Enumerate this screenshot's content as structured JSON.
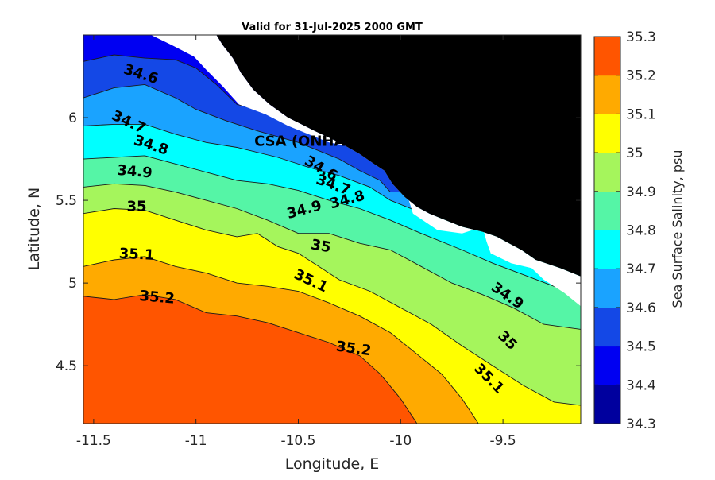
{
  "title": "Valid for 31-Jul-2025 2000 GMT",
  "xlabel": "Longitude, E",
  "ylabel": "Latitude, N",
  "xlim": [
    -11.55,
    -9.12
  ],
  "ylim": [
    4.15,
    6.5
  ],
  "xticks": [
    {
      "value": -11.5,
      "label": "-11.5"
    },
    {
      "value": -11,
      "label": "-11"
    },
    {
      "value": -10.5,
      "label": "-10.5"
    },
    {
      "value": -10,
      "label": "-10"
    },
    {
      "value": -9.5,
      "label": "-9.5"
    }
  ],
  "yticks": [
    {
      "value": 4.5,
      "label": "4.5"
    },
    {
      "value": 5,
      "label": "5"
    },
    {
      "value": 5.5,
      "label": "5.5"
    },
    {
      "value": 6,
      "label": "6"
    }
  ],
  "colorbar": {
    "label": "Sea Surface Salinity, psu",
    "levels": [
      {
        "from": 34.3,
        "to": 34.4,
        "color": "#00009e"
      },
      {
        "from": 34.4,
        "to": 34.5,
        "color": "#0000f2"
      },
      {
        "from": 34.5,
        "to": 34.6,
        "color": "#1448e6"
      },
      {
        "from": 34.6,
        "to": 34.7,
        "color": "#1aa3ff"
      },
      {
        "from": 34.7,
        "to": 34.8,
        "color": "#00ffff"
      },
      {
        "from": 34.8,
        "to": 34.9,
        "color": "#55f5a6"
      },
      {
        "from": 34.9,
        "to": 35.0,
        "color": "#a5f55c"
      },
      {
        "from": 35.0,
        "to": 35.1,
        "color": "#ffff00"
      },
      {
        "from": 35.1,
        "to": 35.2,
        "color": "#ffaa00"
      },
      {
        "from": 35.2,
        "to": 35.3,
        "color": "#ff5500"
      }
    ],
    "tick_labels": [
      "34.3",
      "34.4",
      "34.5",
      "34.6",
      "34.7",
      "34.8",
      "34.9",
      "35",
      "35.1",
      "35.2",
      "35.3"
    ]
  },
  "land_color": "#000000",
  "station": {
    "label": "CSA (ONHAM) PPL ED",
    "lon": -10.28,
    "lat": 5.92
  },
  "contour_labels": [
    {
      "text": "34.6",
      "lon": -11.27,
      "lat": 6.26,
      "rot": 18
    },
    {
      "text": "34.7",
      "lon": -11.33,
      "lat": 5.97,
      "rot": 25
    },
    {
      "text": "34.8",
      "lon": -11.22,
      "lat": 5.83,
      "rot": 18
    },
    {
      "text": "34.9",
      "lon": -11.3,
      "lat": 5.67,
      "rot": 5
    },
    {
      "text": "35",
      "lon": -11.29,
      "lat": 5.46,
      "rot": 0
    },
    {
      "text": "35.1",
      "lon": -11.29,
      "lat": 5.17,
      "rot": 3
    },
    {
      "text": "35.2",
      "lon": -11.19,
      "lat": 4.91,
      "rot": 5
    },
    {
      "text": "34.6",
      "lon": -10.39,
      "lat": 5.69,
      "rot": 30
    },
    {
      "text": "34.7",
      "lon": -10.33,
      "lat": 5.59,
      "rot": 20
    },
    {
      "text": "34.8",
      "lon": -10.26,
      "lat": 5.5,
      "rot": -15
    },
    {
      "text": "34.9",
      "lon": -10.47,
      "lat": 5.44,
      "rot": -15
    },
    {
      "text": "35",
      "lon": -10.39,
      "lat": 5.22,
      "rot": 10
    },
    {
      "text": "35.1",
      "lon": -10.44,
      "lat": 5.01,
      "rot": 25
    },
    {
      "text": "34.9",
      "lon": -9.48,
      "lat": 4.92,
      "rot": 35
    },
    {
      "text": "35",
      "lon": -9.48,
      "lat": 4.65,
      "rot": 45
    },
    {
      "text": "35.1",
      "lon": -9.57,
      "lat": 4.42,
      "rot": 45
    },
    {
      "text": "35.2",
      "lon": -10.23,
      "lat": 4.6,
      "rot": 8
    }
  ],
  "land_polygon": [
    [
      -10.9,
      6.5
    ],
    [
      -9.12,
      6.5
    ],
    [
      -9.12,
      5.04
    ],
    [
      -9.22,
      5.09
    ],
    [
      -9.34,
      5.14
    ],
    [
      -9.41,
      5.2
    ],
    [
      -9.47,
      5.24
    ],
    [
      -9.53,
      5.28
    ],
    [
      -9.6,
      5.31
    ],
    [
      -9.7,
      5.34
    ],
    [
      -9.78,
      5.38
    ],
    [
      -9.86,
      5.42
    ],
    [
      -9.92,
      5.46
    ],
    [
      -9.98,
      5.52
    ],
    [
      -10.04,
      5.6
    ],
    [
      -10.08,
      5.68
    ],
    [
      -10.13,
      5.72
    ],
    [
      -10.2,
      5.78
    ],
    [
      -10.3,
      5.85
    ],
    [
      -10.42,
      5.92
    ],
    [
      -10.55,
      6.0
    ],
    [
      -10.64,
      6.08
    ],
    [
      -10.72,
      6.17
    ],
    [
      -10.78,
      6.27
    ],
    [
      -10.82,
      6.36
    ],
    [
      -10.87,
      6.44
    ]
  ],
  "nodata_polygons": [
    [
      [
        -11.55,
        6.5
      ],
      [
        -10.9,
        6.5
      ],
      [
        -10.87,
        6.44
      ],
      [
        -10.82,
        6.36
      ],
      [
        -10.78,
        6.27
      ],
      [
        -10.72,
        6.17
      ],
      [
        -10.64,
        6.08
      ],
      [
        -10.55,
        6.0
      ],
      [
        -10.42,
        5.92
      ],
      [
        -10.3,
        5.85
      ],
      [
        -10.2,
        5.78
      ],
      [
        -10.13,
        5.72
      ],
      [
        -10.08,
        5.68
      ],
      [
        -10.04,
        5.6
      ],
      [
        -9.98,
        5.52
      ],
      [
        -9.92,
        5.46
      ],
      [
        -9.86,
        5.42
      ],
      [
        -9.78,
        5.38
      ],
      [
        -9.7,
        5.34
      ],
      [
        -9.6,
        5.31
      ],
      [
        -9.53,
        5.28
      ],
      [
        -9.47,
        5.24
      ],
      [
        -9.41,
        5.2
      ],
      [
        -9.34,
        5.14
      ],
      [
        -9.22,
        5.09
      ],
      [
        -9.12,
        5.04
      ],
      [
        -9.12,
        4.86
      ],
      [
        -9.2,
        4.94
      ],
      [
        -9.3,
        5.02
      ],
      [
        -9.36,
        5.09
      ],
      [
        -9.46,
        5.12
      ],
      [
        -9.56,
        5.18
      ],
      [
        -9.58,
        5.25
      ],
      [
        -9.6,
        5.34
      ],
      [
        -9.7,
        5.3
      ],
      [
        -9.82,
        5.32
      ],
      [
        -9.94,
        5.42
      ],
      [
        -9.96,
        5.5
      ],
      [
        -10.01,
        5.62
      ],
      [
        -10.07,
        5.7
      ],
      [
        -10.15,
        5.74
      ],
      [
        -10.22,
        5.82
      ],
      [
        -10.35,
        5.85
      ],
      [
        -10.45,
        5.9
      ],
      [
        -10.55,
        5.95
      ],
      [
        -10.66,
        6.02
      ],
      [
        -10.79,
        6.08
      ],
      [
        -10.87,
        6.19
      ],
      [
        -10.95,
        6.29
      ],
      [
        -11.01,
        6.37
      ],
      [
        -11.12,
        6.44
      ],
      [
        -11.22,
        6.5
      ]
    ]
  ],
  "contour_lines": [
    [
      [
        -11.55,
        6.34
      ],
      [
        -11.4,
        6.38
      ],
      [
        -11.25,
        6.36
      ],
      [
        -11.1,
        6.35
      ],
      [
        -11.0,
        6.3
      ],
      [
        -10.9,
        6.2
      ],
      [
        -10.8,
        6.08
      ],
      [
        -10.6,
        6.02
      ],
      [
        -10.4,
        5.95
      ],
      [
        -10.25,
        5.85
      ]
    ],
    [
      [
        -11.55,
        6.12
      ],
      [
        -11.4,
        6.18
      ],
      [
        -11.25,
        6.2
      ],
      [
        -11.1,
        6.12
      ],
      [
        -11.0,
        6.05
      ],
      [
        -10.85,
        5.98
      ],
      [
        -10.7,
        5.92
      ],
      [
        -10.5,
        5.85
      ],
      [
        -10.4,
        5.8
      ],
      [
        -10.3,
        5.75
      ],
      [
        -10.2,
        5.68
      ],
      [
        -10.1,
        5.62
      ],
      [
        -10.05,
        5.55
      ]
    ],
    [
      [
        -11.55,
        5.95
      ],
      [
        -11.4,
        5.96
      ],
      [
        -11.25,
        5.96
      ],
      [
        -11.1,
        5.9
      ],
      [
        -10.95,
        5.85
      ],
      [
        -10.8,
        5.82
      ],
      [
        -10.6,
        5.76
      ],
      [
        -10.45,
        5.7
      ],
      [
        -10.3,
        5.65
      ],
      [
        -10.15,
        5.58
      ],
      [
        -10.05,
        5.5
      ],
      [
        -9.95,
        5.45
      ],
      [
        -9.85,
        5.4
      ]
    ],
    [
      [
        -11.55,
        5.75
      ],
      [
        -11.4,
        5.76
      ],
      [
        -11.25,
        5.77
      ],
      [
        -11.1,
        5.72
      ],
      [
        -10.95,
        5.67
      ],
      [
        -10.8,
        5.62
      ],
      [
        -10.65,
        5.6
      ],
      [
        -10.5,
        5.56
      ],
      [
        -10.35,
        5.5
      ],
      [
        -10.2,
        5.45
      ],
      [
        -10.05,
        5.38
      ],
      [
        -9.9,
        5.3
      ],
      [
        -9.7,
        5.2
      ],
      [
        -9.55,
        5.12
      ],
      [
        -9.4,
        5.05
      ],
      [
        -9.25,
        4.98
      ],
      [
        -9.12,
        4.92
      ]
    ],
    [
      [
        -11.55,
        5.58
      ],
      [
        -11.4,
        5.6
      ],
      [
        -11.25,
        5.59
      ],
      [
        -11.1,
        5.55
      ],
      [
        -10.95,
        5.5
      ],
      [
        -10.8,
        5.45
      ],
      [
        -10.65,
        5.38
      ],
      [
        -10.5,
        5.3
      ],
      [
        -10.35,
        5.3
      ],
      [
        -10.2,
        5.24
      ],
      [
        -10.05,
        5.2
      ],
      [
        -9.9,
        5.1
      ],
      [
        -9.75,
        5.0
      ],
      [
        -9.6,
        4.93
      ],
      [
        -9.45,
        4.85
      ],
      [
        -9.3,
        4.75
      ],
      [
        -9.12,
        4.72
      ]
    ],
    [
      [
        -11.55,
        5.42
      ],
      [
        -11.4,
        5.45
      ],
      [
        -11.25,
        5.44
      ],
      [
        -11.1,
        5.38
      ],
      [
        -10.95,
        5.32
      ],
      [
        -10.8,
        5.28
      ],
      [
        -10.7,
        5.3
      ],
      [
        -10.6,
        5.22
      ],
      [
        -10.5,
        5.18
      ],
      [
        -10.4,
        5.1
      ],
      [
        -10.3,
        5.02
      ],
      [
        -10.15,
        4.95
      ],
      [
        -10.0,
        4.85
      ],
      [
        -9.85,
        4.75
      ],
      [
        -9.7,
        4.62
      ],
      [
        -9.55,
        4.5
      ],
      [
        -9.4,
        4.38
      ],
      [
        -9.25,
        4.28
      ],
      [
        -9.12,
        4.26
      ]
    ],
    [
      [
        -11.55,
        5.1
      ],
      [
        -11.4,
        5.14
      ],
      [
        -11.25,
        5.16
      ],
      [
        -11.1,
        5.1
      ],
      [
        -10.95,
        5.06
      ],
      [
        -10.8,
        5.0
      ],
      [
        -10.65,
        4.98
      ],
      [
        -10.5,
        4.95
      ],
      [
        -10.35,
        4.88
      ],
      [
        -10.2,
        4.8
      ],
      [
        -10.05,
        4.7
      ],
      [
        -9.9,
        4.55
      ],
      [
        -9.8,
        4.45
      ],
      [
        -9.7,
        4.3
      ],
      [
        -9.62,
        4.15
      ]
    ],
    [
      [
        -11.55,
        4.92
      ],
      [
        -11.4,
        4.9
      ],
      [
        -11.25,
        4.93
      ],
      [
        -11.1,
        4.9
      ],
      [
        -10.95,
        4.82
      ],
      [
        -10.8,
        4.8
      ],
      [
        -10.65,
        4.76
      ],
      [
        -10.5,
        4.7
      ],
      [
        -10.35,
        4.64
      ],
      [
        -10.2,
        4.56
      ],
      [
        -10.1,
        4.45
      ],
      [
        -10.0,
        4.3
      ],
      [
        -9.92,
        4.15
      ]
    ]
  ]
}
